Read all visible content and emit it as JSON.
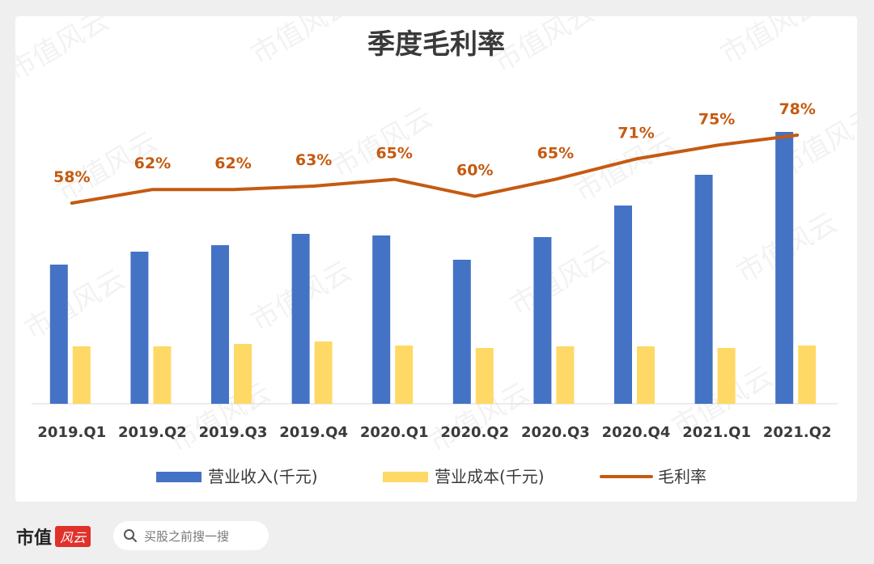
{
  "brand": {
    "logo_text": "市值",
    "logo_badge": "风云"
  },
  "search": {
    "placeholder": "买股之前搜一搜"
  },
  "chart_data": {
    "type": "bar+line",
    "title": "季度毛利率",
    "categories": [
      "2019.Q1",
      "2019.Q2",
      "2019.Q3",
      "2019.Q4",
      "2020.Q1",
      "2020.Q2",
      "2020.Q3",
      "2020.Q4",
      "2021.Q1",
      "2021.Q2"
    ],
    "series": [
      {
        "name": "营业收入(千元)",
        "type": "bar",
        "color": "#4472c4",
        "values": [
          172000,
          188000,
          196000,
          210000,
          208000,
          178000,
          206000,
          245000,
          283000,
          336000
        ]
      },
      {
        "name": "营业成本(千元)",
        "type": "bar",
        "color": "#ffd966",
        "values": [
          71000,
          71000,
          74000,
          77000,
          72000,
          69000,
          71000,
          71000,
          69000,
          72000
        ]
      },
      {
        "name": "毛利率",
        "type": "line",
        "color": "#c55a11",
        "values": [
          58,
          62,
          62,
          63,
          65,
          60,
          65,
          71,
          75,
          78
        ],
        "labels": [
          "58%",
          "62%",
          "62%",
          "63%",
          "65%",
          "60%",
          "65%",
          "71%",
          "75%",
          "78%"
        ]
      }
    ],
    "legend_position": "bottom",
    "grid": false
  },
  "watermark": "市值风云"
}
